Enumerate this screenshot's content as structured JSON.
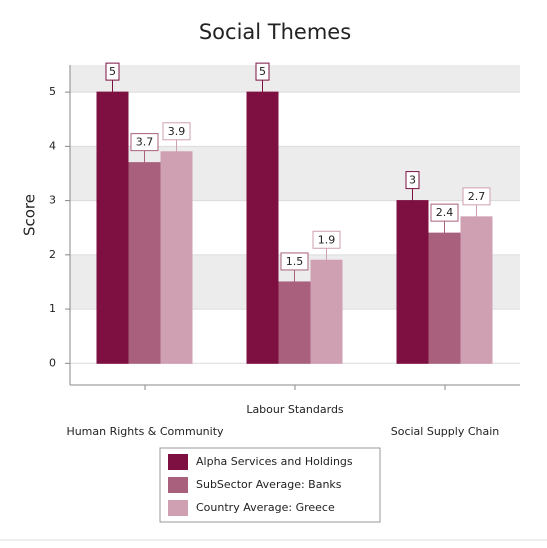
{
  "chart_data": {
    "type": "bar",
    "title": "Social Themes",
    "y_label": "Score",
    "categories": [
      "Human Rights & Community",
      "Labour Standards",
      "Social Supply Chain"
    ],
    "series": [
      {
        "name": "Alpha Services and Holdings",
        "color": "#7d1040",
        "values": [
          5,
          5,
          3
        ]
      },
      {
        "name": "SubSector Average: Banks",
        "color": "#a8607d",
        "values": [
          3.7,
          1.5,
          2.4
        ]
      },
      {
        "name": "Country Average: Greece",
        "color": "#cf9fb2",
        "values": [
          3.9,
          1.9,
          2.7
        ]
      }
    ],
    "ylim": [
      -0.4,
      5.5
    ],
    "yticks": [
      0,
      1,
      2,
      3,
      4,
      5
    ],
    "grid": true
  }
}
